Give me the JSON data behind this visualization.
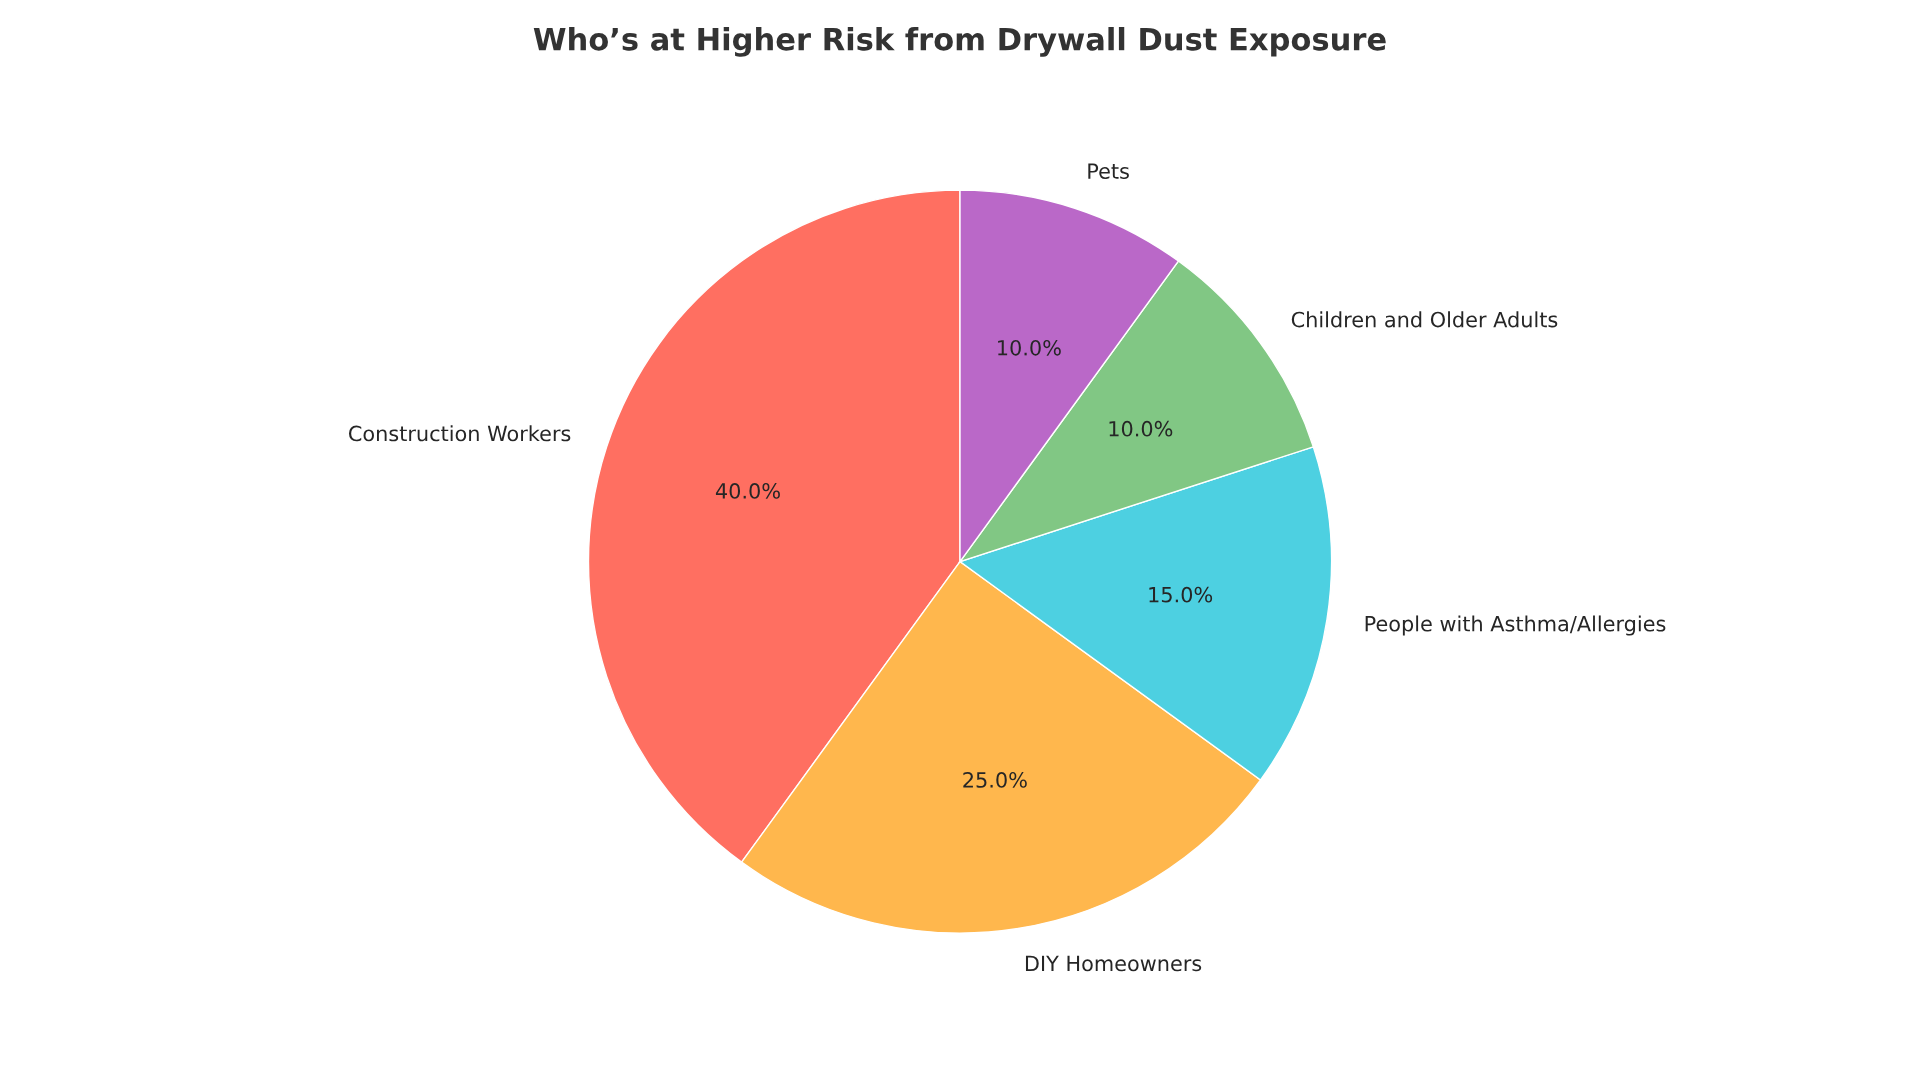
{
  "chart_data": {
    "type": "pie",
    "title": "Who’s at Higher Risk from Drywall Dust Exposure",
    "categories": [
      "Construction Workers",
      "DIY Homeowners",
      "People with Asthma/Allergies",
      "Children and Older Adults",
      "Pets"
    ],
    "values": [
      40,
      25,
      15,
      10,
      10
    ],
    "value_labels": [
      "40.0%",
      "25.0%",
      "15.0%",
      "10.0%",
      "10.0%"
    ],
    "colors": [
      "#ff6f61",
      "#ffb74d",
      "#4dd0e1",
      "#81c784",
      "#ba68c8"
    ],
    "legend": false
  }
}
